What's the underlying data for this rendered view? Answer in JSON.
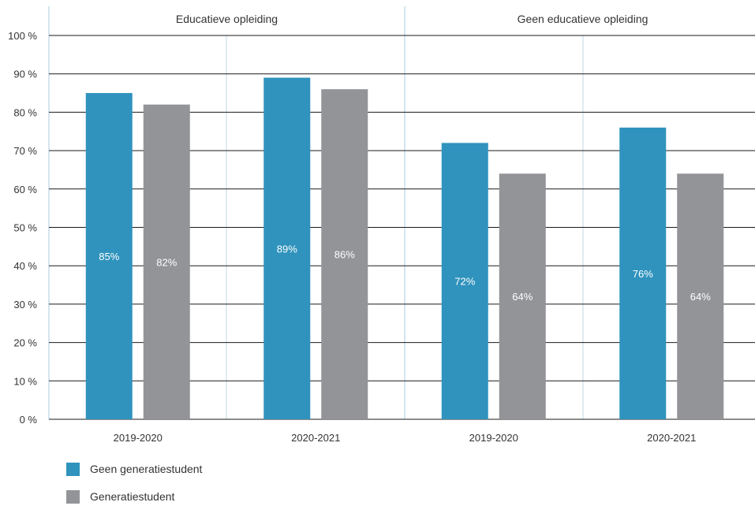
{
  "chart_data": {
    "type": "bar",
    "groups": [
      "Educatieve opleiding",
      "Geen educatieve opleiding"
    ],
    "categories": [
      "2019-2020",
      "2020-2021",
      "2019-2020",
      "2020-2021"
    ],
    "series": [
      {
        "name": "Geen generatiestudent",
        "color": "#2F93BD",
        "values": [
          85,
          89,
          72,
          76
        ],
        "labels": [
          "85%",
          "89%",
          "72%",
          "76%"
        ]
      },
      {
        "name": "Generatiestudent",
        "color": "#929497",
        "values": [
          82,
          86,
          64,
          64
        ],
        "labels": [
          "82%",
          "86%",
          "64%",
          "64%"
        ]
      }
    ],
    "yticks": [
      0,
      10,
      20,
      30,
      40,
      50,
      60,
      70,
      80,
      90,
      100
    ],
    "ytick_labels": [
      "0 %",
      "10 %",
      "20 %",
      "30 %",
      "40 %",
      "50 %",
      "60 %",
      "70 %",
      "80 %",
      "90 %",
      "100 %"
    ],
    "ylim": [
      0,
      100
    ],
    "grid": true,
    "legend_position": "bottom-left"
  }
}
